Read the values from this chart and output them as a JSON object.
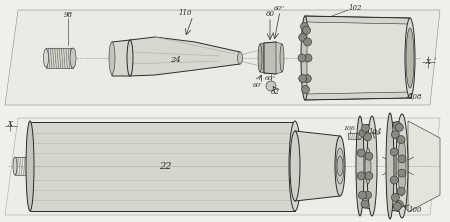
{
  "bg_color": "#f0efea",
  "line_color": "#2a2a2a",
  "fig_width": 4.5,
  "fig_height": 2.22,
  "dpi": 100
}
